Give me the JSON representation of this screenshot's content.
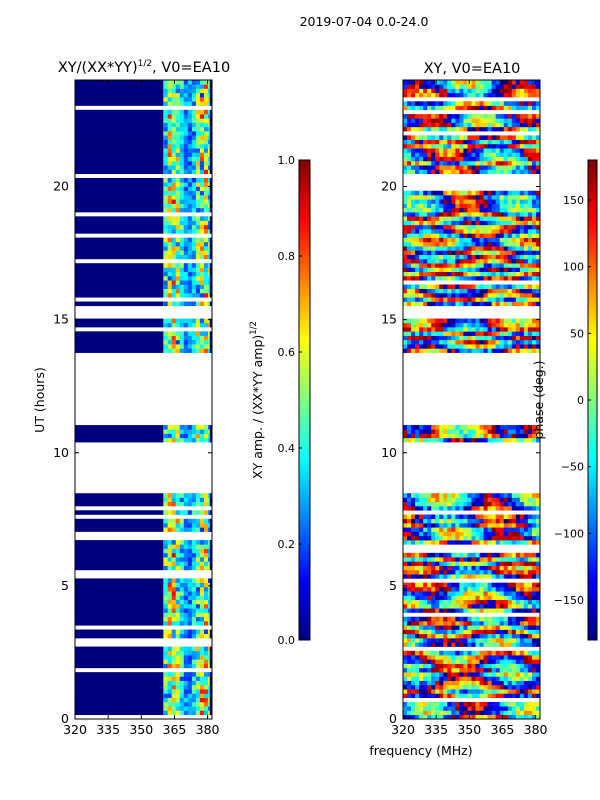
{
  "figure_title": "2019-07-04 0.0-24.0",
  "common_xlabel": "frequency (MHz)",
  "chart_data": [
    {
      "type": "heatmap",
      "title": "XY/(XX*YY)",
      "title_sup": "1/2",
      "title_suffix": ", V0=EA10",
      "ylabel": "UT (hours)",
      "xlim": [
        320,
        382
      ],
      "ylim": [
        0,
        24
      ],
      "xticks": [
        320,
        335,
        350,
        365,
        380
      ],
      "yticks": [
        0,
        5,
        10,
        15,
        20
      ],
      "active_band": [
        360,
        381
      ],
      "gaps_hours": [
        [
          8.5,
          10.4
        ],
        [
          11.1,
          13.8
        ],
        [
          15.0,
          15.5
        ]
      ],
      "colorbar": {
        "label": "XY amp. / (XX*YY amp)",
        "label_sup": "1/2",
        "range": [
          0.0,
          1.0
        ],
        "ticks": [
          "0.0",
          "0.2",
          "0.4",
          "0.6",
          "0.8",
          "1.0"
        ],
        "tick_values": [
          0.0,
          0.2,
          0.4,
          0.6,
          0.8,
          1.0
        ]
      }
    },
    {
      "type": "heatmap",
      "title": "XY, V0=EA10",
      "xlim": [
        320,
        382
      ],
      "ylim": [
        0,
        24
      ],
      "xticks": [
        320,
        335,
        350,
        365,
        380
      ],
      "yticks": [
        0,
        5,
        10,
        15,
        20
      ],
      "gaps_hours": [
        [
          8.5,
          10.4
        ],
        [
          11.1,
          13.8
        ],
        [
          15.0,
          15.5
        ]
      ],
      "colorbar": {
        "label": "phase (deg.)",
        "range": [
          -180,
          180
        ],
        "ticks": [
          "−150",
          "−100",
          "−50",
          "0",
          "50",
          "100",
          "150"
        ],
        "tick_values": [
          -150,
          -100,
          -50,
          0,
          50,
          100,
          150
        ]
      }
    }
  ]
}
